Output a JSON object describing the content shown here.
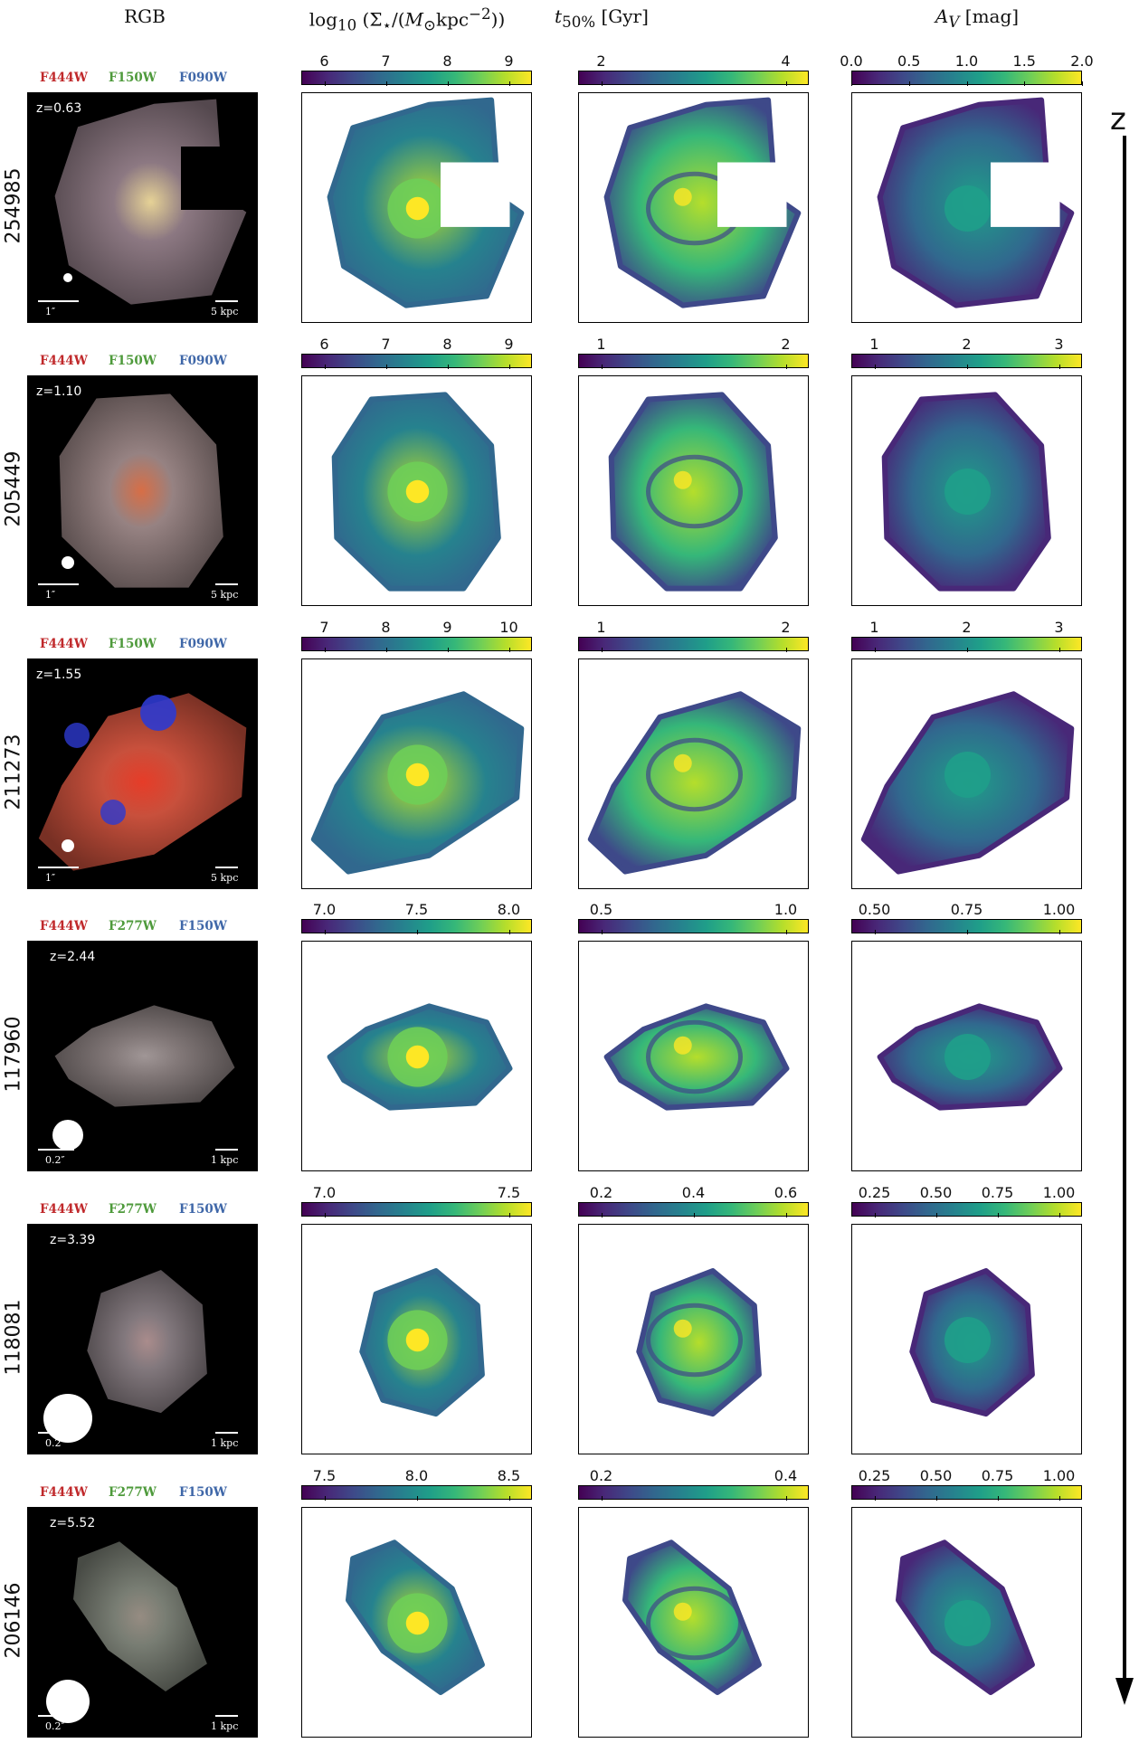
{
  "columns": {
    "rgb": "RGB",
    "mass": "log₁₀ (Σ⋆/(M⊙kpc⁻²))",
    "age": "t50% [Gyr]",
    "av": "AV [mag]"
  },
  "z_axis_label": "z",
  "colormap": "viridis",
  "filter_colors": {
    "red": "#c0292b",
    "green": "#4e9a3b",
    "blue": "#3f67a8"
  },
  "rows": [
    {
      "id": "254985",
      "z": "z=0.63",
      "filters": [
        "F444W",
        "F150W",
        "F090W"
      ],
      "ang_scale": "1″",
      "phys_scale": "5 kpc",
      "mass_ticks": [
        "6",
        "7",
        "8",
        "9"
      ],
      "age_ticks": [
        "2",
        "4"
      ],
      "av_ticks": [
        "0.0",
        "0.5",
        "1.0",
        "1.5",
        "2.0"
      ]
    },
    {
      "id": "205449",
      "z": "z=1.10",
      "filters": [
        "F444W",
        "F150W",
        "F090W"
      ],
      "ang_scale": "1″",
      "phys_scale": "5 kpc",
      "mass_ticks": [
        "6",
        "7",
        "8",
        "9"
      ],
      "age_ticks": [
        "1",
        "2"
      ],
      "av_ticks": [
        "1",
        "2",
        "3"
      ]
    },
    {
      "id": "211273",
      "z": "z=1.55",
      "filters": [
        "F444W",
        "F150W",
        "F090W"
      ],
      "ang_scale": "1″",
      "phys_scale": "5 kpc",
      "mass_ticks": [
        "7",
        "8",
        "9",
        "10"
      ],
      "age_ticks": [
        "1",
        "2"
      ],
      "av_ticks": [
        "1",
        "2",
        "3"
      ]
    },
    {
      "id": "117960",
      "z": "z=2.44",
      "filters": [
        "F444W",
        "F277W",
        "F150W"
      ],
      "ang_scale": "0.2″",
      "phys_scale": "1 kpc",
      "mass_ticks": [
        "7.0",
        "7.5",
        "8.0"
      ],
      "age_ticks": [
        "0.5",
        "1.0"
      ],
      "av_ticks": [
        "0.50",
        "0.75",
        "1.00"
      ]
    },
    {
      "id": "118081",
      "z": "z=3.39",
      "filters": [
        "F444W",
        "F277W",
        "F150W"
      ],
      "ang_scale": "0.2″",
      "phys_scale": "1 kpc",
      "mass_ticks": [
        "7.0",
        "7.5"
      ],
      "age_ticks": [
        "0.2",
        "0.4",
        "0.6"
      ],
      "av_ticks": [
        "0.25",
        "0.50",
        "0.75",
        "1.00"
      ]
    },
    {
      "id": "206146",
      "z": "z=5.52",
      "filters": [
        "F444W",
        "F277W",
        "F150W"
      ],
      "ang_scale": "0.2″",
      "phys_scale": "1 kpc",
      "mass_ticks": [
        "7.5",
        "8.0",
        "8.5"
      ],
      "age_ticks": [
        "0.2",
        "0.4"
      ],
      "av_ticks": [
        "0.25",
        "0.50",
        "0.75",
        "1.00"
      ]
    }
  ]
}
